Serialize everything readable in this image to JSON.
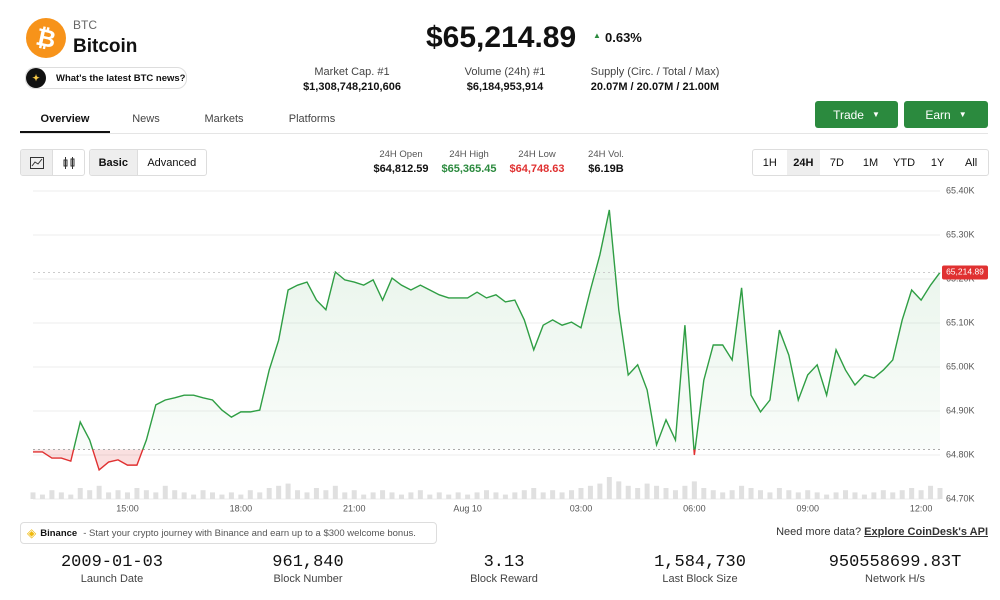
{
  "header": {
    "symbol": "BTC",
    "name": "Bitcoin",
    "price": "$65,214.89",
    "change": "0.63%",
    "news": "What's the latest BTC news?"
  },
  "stats": [
    {
      "label": "Market Cap. #1",
      "value": "$1,308,748,210,606"
    },
    {
      "label": "Volume (24h) #1",
      "value": "$6,184,953,914"
    },
    {
      "label": "Supply (Circ. / Total / Max)",
      "value": "20.07M / 20.07M / 21.00M"
    }
  ],
  "tabs": [
    "Overview",
    "News",
    "Markets",
    "Platforms"
  ],
  "buttons": [
    "Trade",
    "Earn"
  ],
  "modes": [
    "Basic",
    "Advanced"
  ],
  "summary": [
    {
      "label": "24H Open",
      "value": "$64,812.59"
    },
    {
      "label": "24H High",
      "value": "$65,365.45"
    },
    {
      "label": "24H Low",
      "value": "$64,748.63"
    },
    {
      "label": "24H Vol.",
      "value": "$6.19B"
    }
  ],
  "ranges": [
    "1H",
    "24H",
    "7D",
    "1M",
    "YTD",
    "1Y",
    "All"
  ],
  "chart_data": {
    "type": "line",
    "categories": [
      null,
      null,
      null,
      null,
      null,
      null,
      null,
      null,
      null,
      null,
      "15:00",
      null,
      null,
      null,
      null,
      null,
      null,
      null,
      null,
      null,
      null,
      null,
      "18:00",
      null,
      null,
      null,
      null,
      null,
      null,
      null,
      null,
      null,
      null,
      null,
      "21:00",
      null,
      null,
      null,
      null,
      null,
      null,
      null,
      null,
      null,
      null,
      null,
      "Aug 10",
      null,
      null,
      null,
      null,
      null,
      null,
      null,
      null,
      null,
      null,
      null,
      "03:00",
      null,
      null,
      null,
      null,
      null,
      null,
      null,
      null,
      null,
      null,
      null,
      "06:00",
      null,
      null,
      null,
      null,
      null,
      null,
      null,
      null,
      null,
      null,
      null,
      "09:00",
      null,
      null,
      null,
      null,
      null,
      null,
      null,
      null,
      null,
      null,
      null,
      "12:00",
      null,
      null
    ],
    "values": [
      64807,
      64807,
      64793,
      64793,
      64786,
      64875,
      64834,
      64766,
      64784,
      64789,
      64777,
      64777,
      64834,
      64914,
      64925,
      64930,
      64936,
      64936,
      64930,
      64925,
      64902,
      64886,
      64898,
      64898,
      64902,
      64993,
      65061,
      65175,
      65186,
      65193,
      65152,
      65130,
      65216,
      65198,
      65193,
      65186,
      65198,
      65152,
      65202,
      65186,
      65175,
      65186,
      65175,
      65164,
      65157,
      65157,
      65157,
      65170,
      65157,
      65164,
      65148,
      65152,
      65107,
      65039,
      65095,
      65107,
      65095,
      65102,
      65089,
      65175,
      65255,
      65357,
      65130,
      64982,
      65005,
      64948,
      64823,
      64880,
      64834,
      65095,
      64800,
      64970,
      65050,
      65050,
      65016,
      65180,
      64936,
      64898,
      64925,
      65084,
      65027,
      64925,
      64982,
      65005,
      64936,
      65039,
      64993,
      64959,
      64982,
      64975,
      64993,
      65016,
      65107,
      65175,
      65152,
      65186,
      65214.89
    ],
    "volume": [
      3,
      2,
      4,
      3,
      2,
      5,
      4,
      6,
      3,
      4,
      3,
      5,
      4,
      3,
      6,
      4,
      3,
      2,
      4,
      3,
      2,
      3,
      2,
      4,
      3,
      5,
      6,
      7,
      4,
      3,
      5,
      4,
      6,
      3,
      4,
      2,
      3,
      4,
      3,
      2,
      3,
      4,
      2,
      3,
      2,
      3,
      2,
      3,
      4,
      3,
      2,
      3,
      4,
      5,
      3,
      4,
      3,
      4,
      5,
      6,
      7,
      10,
      8,
      6,
      5,
      7,
      6,
      5,
      4,
      6,
      8,
      5,
      4,
      3,
      4,
      6,
      5,
      4,
      3,
      5,
      4,
      3,
      4,
      3,
      2,
      3,
      4,
      3,
      2,
      3,
      4,
      3,
      4,
      5,
      4,
      6,
      5
    ],
    "open_line": 64812.59,
    "last_value_label": "65,214.89",
    "color": "#2f9e44",
    "down_color": "#e03131",
    "ylim": [
      64700,
      65400
    ],
    "yticks": [
      {
        "value": 64700,
        "label": "64.70K"
      },
      {
        "value": 64800,
        "label": "64.80K"
      },
      {
        "value": 64900,
        "label": "64.90K"
      },
      {
        "value": 65000,
        "label": "65.00K"
      },
      {
        "value": 65100,
        "label": "65.10K"
      },
      {
        "value": 65200,
        "label": "65.20K"
      },
      {
        "value": 65300,
        "label": "65.30K"
      },
      {
        "value": 65400,
        "label": "65.40K"
      }
    ],
    "grid": true
  },
  "banner": {
    "brand": "Binance",
    "text": "- Start your crypto journey with Binance and earn up to a $300 welcome bonus."
  },
  "api": {
    "text": "Need more data?",
    "link": "Explore CoinDesk's API"
  },
  "metrics": [
    {
      "value": "2009-01-03",
      "label": "Launch Date"
    },
    {
      "value": "961,840",
      "label": "Block Number"
    },
    {
      "value": "3.13",
      "label": "Block Reward"
    },
    {
      "value": "1,584,730",
      "label": "Last Block Size"
    },
    {
      "value": "950558699.83T",
      "label": "Network H/s"
    }
  ]
}
